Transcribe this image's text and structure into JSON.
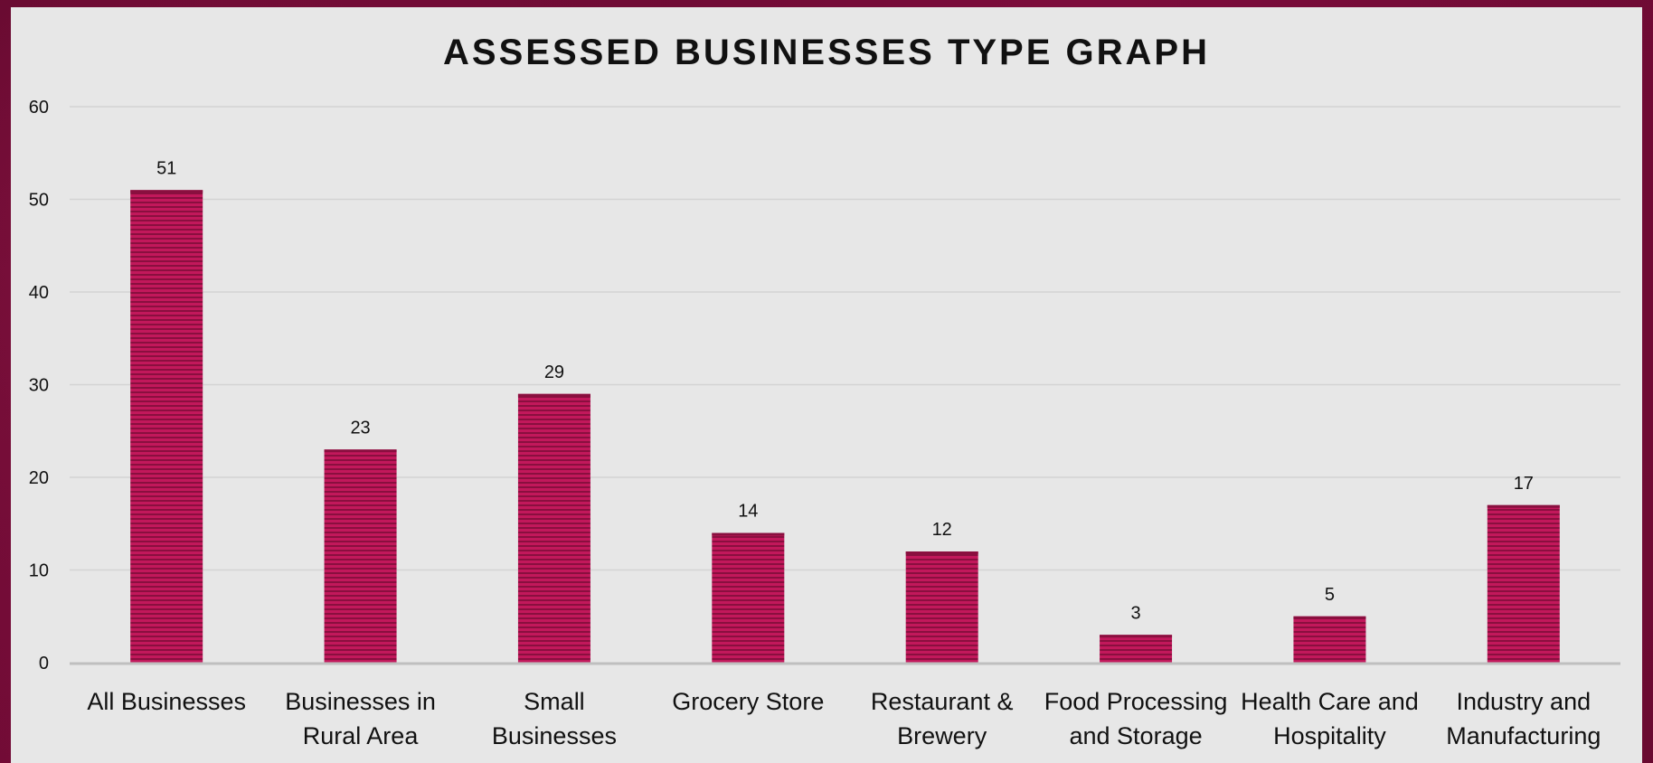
{
  "chart_data": {
    "type": "bar",
    "title": "ASSESSED BUSINESSES TYPE GRAPH",
    "xlabel": "",
    "ylabel": "",
    "categories": [
      [
        "All Businesses"
      ],
      [
        "Businesses in",
        "Rural Area"
      ],
      [
        "Small",
        "Businesses"
      ],
      [
        "Grocery Store"
      ],
      [
        "Restaurant &",
        "Brewery"
      ],
      [
        "Food Processing",
        "and Storage"
      ],
      [
        "Health Care and",
        "Hospitality"
      ],
      [
        "Industry and",
        "Manufacturing"
      ]
    ],
    "values": [
      51,
      23,
      29,
      14,
      12,
      3,
      5,
      17
    ],
    "ylim": [
      0,
      60
    ],
    "yticks": [
      0,
      10,
      20,
      30,
      40,
      50,
      60
    ],
    "grid": true,
    "legend": "none",
    "colors": {
      "bar": "#c2185b",
      "bar_stripe": "#8a0f3f",
      "grid": "#d4d4d4",
      "axis": "#bfbfbf",
      "panel": "#e7e7e7",
      "frame": "#6e0a33"
    }
  }
}
